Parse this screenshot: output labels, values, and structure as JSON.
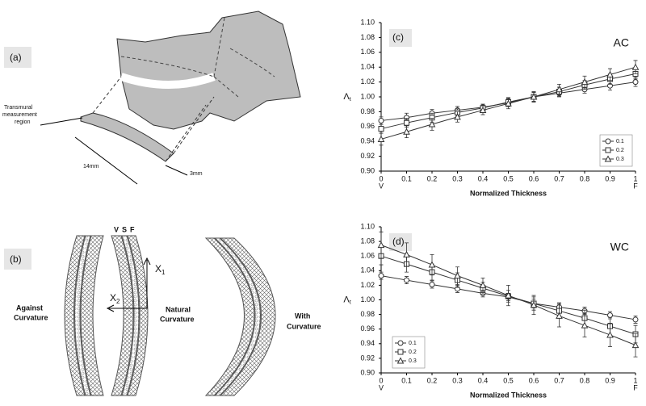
{
  "panels": {
    "a": {
      "label": "(a)",
      "region_label": [
        "Transmural",
        "measurement",
        "region"
      ],
      "length": "14mm",
      "width": "3mm"
    },
    "b": {
      "label": "(b)",
      "layers": [
        "V",
        "S",
        "F"
      ],
      "axis_1": {
        "base": "X",
        "sub": "1"
      },
      "axis_2": {
        "base": "X",
        "sub": "2"
      },
      "against": [
        "Against",
        "Curvature"
      ],
      "natural": [
        "Natural",
        "Curvature"
      ],
      "with": [
        "With",
        "Curvature"
      ]
    }
  },
  "chart_data": [
    {
      "type": "line",
      "panel_label": "(c)",
      "annotation": "AC",
      "x_label": "Normalized Thickness",
      "y_label": "Λ",
      "y_label_sub": "t",
      "x_end_labels": [
        "V",
        "F"
      ],
      "x": [
        0,
        0.1,
        0.2,
        0.3,
        0.4,
        0.5,
        0.6,
        0.7,
        0.8,
        0.9,
        1
      ],
      "xlim": [
        0,
        1
      ],
      "xticks": [
        0,
        0.1,
        0.2,
        0.3,
        0.4,
        0.5,
        0.6,
        0.7,
        0.8,
        0.9,
        1
      ],
      "ylim": [
        0.9,
        1.1
      ],
      "yticks": [
        {
          "value": 0.9,
          "label": "0.90"
        },
        0.92,
        0.94,
        0.96,
        0.98,
        {
          "value": 1,
          "label": "1.00"
        },
        1.02,
        1.04,
        1.06,
        1.08,
        {
          "value": 1.1,
          "label": "1.10"
        }
      ],
      "legend": "lower right",
      "series": [
        {
          "name": "0.1",
          "color": "#333333",
          "marker": "circle",
          "values": [
            0.968,
            0.972,
            0.978,
            0.982,
            0.986,
            0.992,
            1.0,
            1.005,
            1.01,
            1.015,
            1.02
          ],
          "errors": [
            0.005,
            0.006,
            0.005,
            0.005,
            0.004,
            0.005,
            0.006,
            0.005,
            0.005,
            0.006,
            0.006
          ]
        },
        {
          "name": "0.2",
          "color": "#333333",
          "marker": "square",
          "values": [
            0.957,
            0.965,
            0.972,
            0.979,
            0.985,
            0.993,
            1.0,
            1.007,
            1.016,
            1.024,
            1.031
          ],
          "errors": [
            0.006,
            0.006,
            0.006,
            0.005,
            0.005,
            0.006,
            0.006,
            0.006,
            0.006,
            0.007,
            0.007
          ]
        },
        {
          "name": "0.3",
          "color": "#333333",
          "marker": "triangle",
          "values": [
            0.943,
            0.953,
            0.963,
            0.973,
            0.982,
            0.991,
            1.0,
            1.01,
            1.02,
            1.03,
            1.04
          ],
          "errors": [
            0.008,
            0.008,
            0.008,
            0.007,
            0.006,
            0.007,
            0.007,
            0.007,
            0.008,
            0.008,
            0.009
          ]
        }
      ]
    },
    {
      "type": "line",
      "panel_label": "(d)",
      "annotation": "WC",
      "x_label": "Normalized Thickness",
      "y_label": "Λ",
      "y_label_sub": "t",
      "x_end_labels": [
        "V",
        "F"
      ],
      "x": [
        0,
        0.1,
        0.2,
        0.3,
        0.4,
        0.5,
        0.6,
        0.7,
        0.8,
        0.9,
        1
      ],
      "xlim": [
        0,
        1
      ],
      "xticks": [
        0,
        0.1,
        0.2,
        0.3,
        0.4,
        0.5,
        0.6,
        0.7,
        0.8,
        0.9,
        1
      ],
      "ylim": [
        0.9,
        1.1
      ],
      "yticks": [
        {
          "value": 0.9,
          "label": "0.90"
        },
        0.92,
        0.94,
        0.96,
        0.98,
        {
          "value": 1,
          "label": "1.00"
        },
        1.02,
        1.04,
        1.06,
        1.08,
        {
          "value": 1.1,
          "label": "1.10"
        }
      ],
      "legend": "lower left",
      "series": [
        {
          "name": "0.1",
          "color": "#333333",
          "marker": "circle",
          "values": [
            1.033,
            1.027,
            1.021,
            1.015,
            1.009,
            1.004,
            0.995,
            0.99,
            0.985,
            0.979,
            0.973
          ],
          "errors": [
            0.005,
            0.005,
            0.005,
            0.005,
            0.005,
            0.005,
            0.006,
            0.006,
            0.005,
            0.005,
            0.005
          ]
        },
        {
          "name": "0.2",
          "color": "#333333",
          "marker": "square",
          "values": [
            1.06,
            1.049,
            1.038,
            1.027,
            1.016,
            1.005,
            0.995,
            0.985,
            0.975,
            0.964,
            0.953
          ],
          "errors": [
            0.012,
            0.011,
            0.011,
            0.01,
            0.008,
            0.008,
            0.009,
            0.01,
            0.011,
            0.012,
            0.012
          ]
        },
        {
          "name": "0.3",
          "color": "#333333",
          "marker": "triangle",
          "values": [
            1.075,
            1.062,
            1.048,
            1.033,
            1.02,
            1.006,
            0.993,
            0.978,
            0.965,
            0.952,
            0.938
          ],
          "errors": [
            0.018,
            0.016,
            0.014,
            0.012,
            0.01,
            0.014,
            0.013,
            0.015,
            0.016,
            0.016,
            0.016
          ]
        }
      ]
    }
  ]
}
